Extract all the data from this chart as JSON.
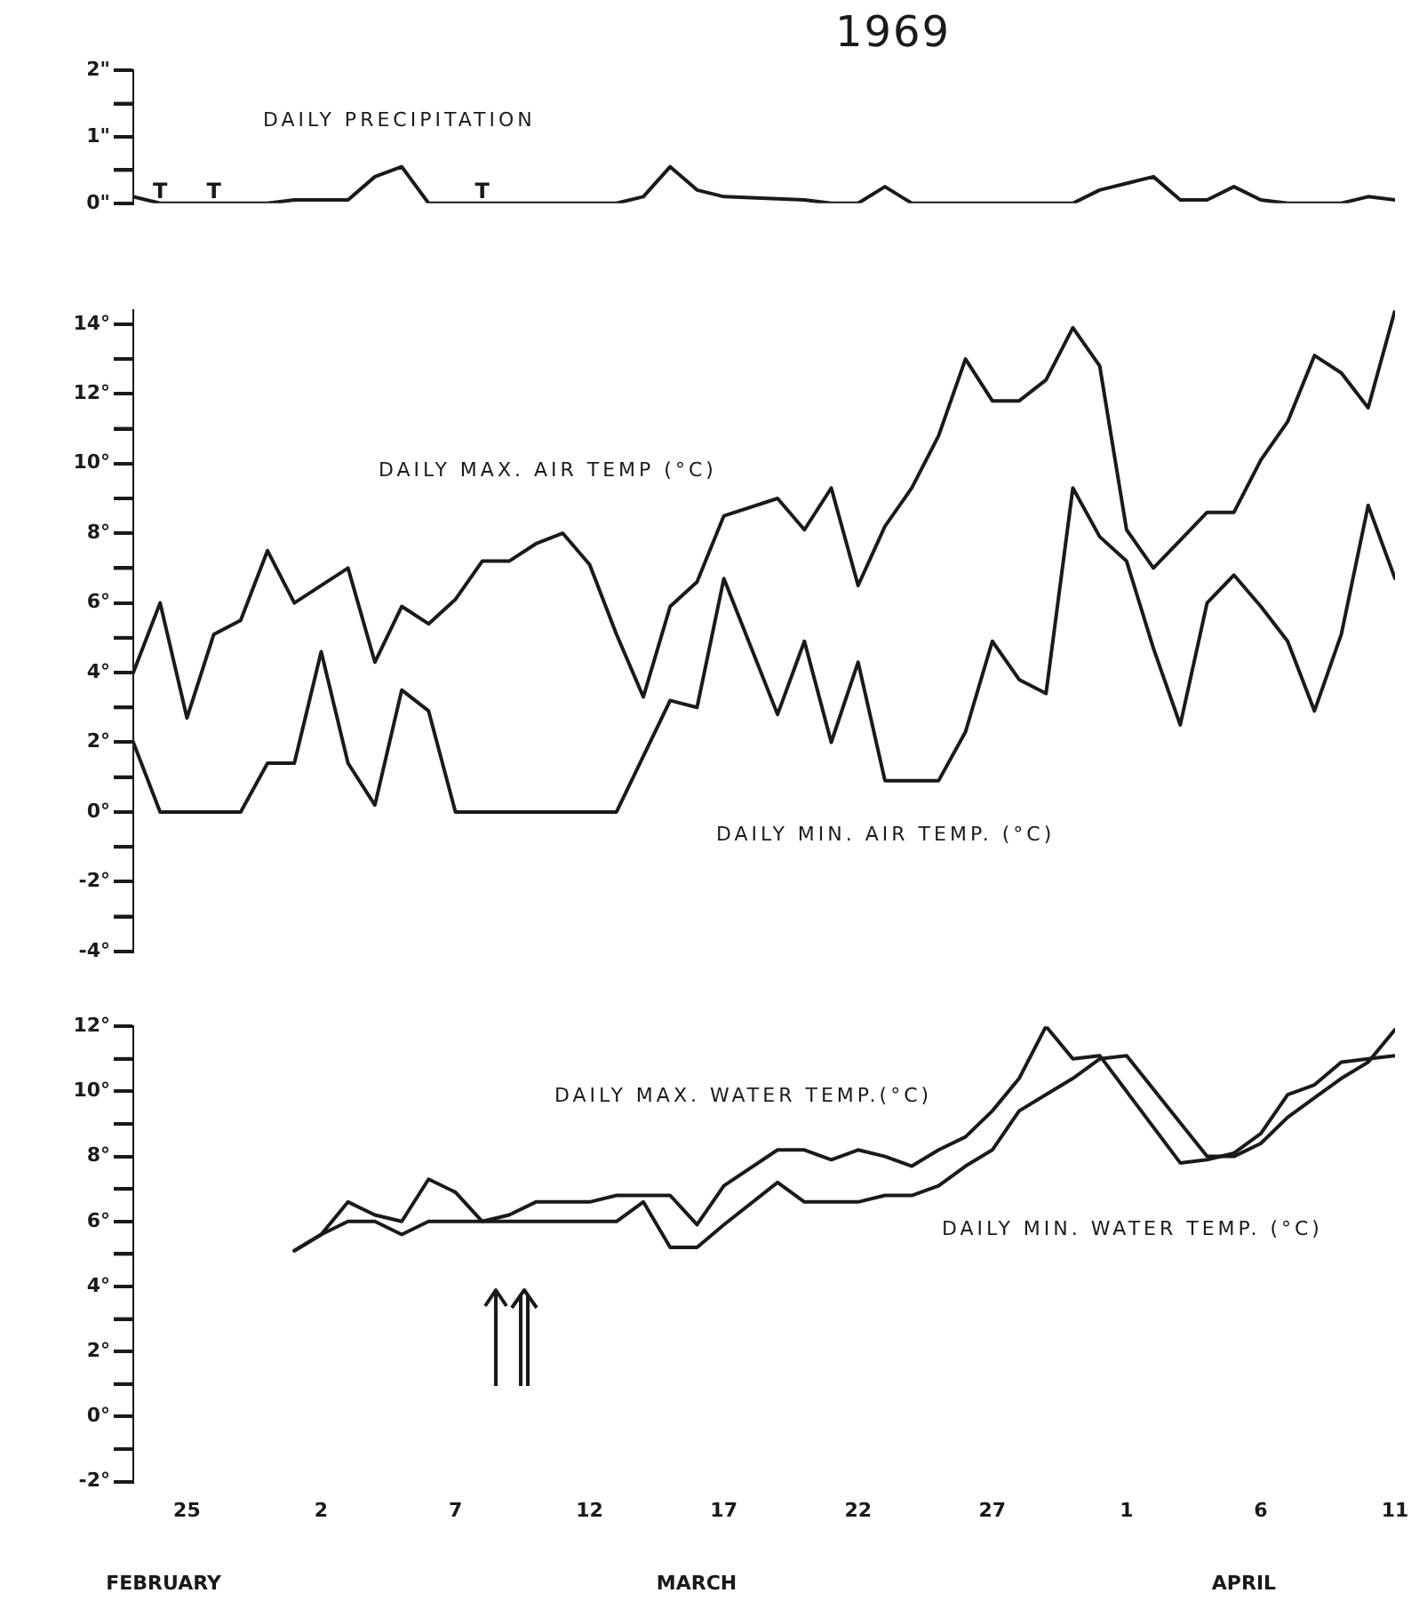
{
  "chart_data": [
    {
      "type": "line",
      "title": "1969",
      "tick_labels": "y",
      "marker": "none",
      "xlim": [
        "1969-02-23",
        "1969-04-11"
      ],
      "ylim": [
        0,
        2
      ],
      "yticks": [
        {
          "value": 0,
          "label": "0\""
        },
        {
          "value": 0.5,
          "label": null
        },
        {
          "value": 1,
          "label": "1\""
        },
        {
          "value": 1.5,
          "label": null
        },
        {
          "value": 2,
          "label": "2\""
        }
      ],
      "series": [
        {
          "name": "DAILY PRECIPITATION",
          "color": "#1a1a1a",
          "x": [
            "1969-02-23",
            "1969-02-24",
            "1969-02-26",
            "1969-02-28",
            "1969-03-01",
            "1969-03-03",
            "1969-03-04",
            "1969-03-05",
            "1969-03-06",
            "1969-03-08",
            "1969-03-10",
            "1969-03-13",
            "1969-03-14",
            "1969-03-15",
            "1969-03-16",
            "1969-03-17",
            "1969-03-20",
            "1969-03-21",
            "1969-03-22",
            "1969-03-23",
            "1969-03-24",
            "1969-03-30",
            "1969-03-31",
            "1969-04-02",
            "1969-04-03",
            "1969-04-04",
            "1969-04-05",
            "1969-04-06",
            "1969-04-07",
            "1969-04-09",
            "1969-04-10",
            "1969-04-11"
          ],
          "values": [
            0.1,
            0,
            0,
            0,
            0.05,
            0.05,
            0.4,
            0.55,
            0,
            0,
            0,
            0,
            0.1,
            0.55,
            0.2,
            0.1,
            0.05,
            0,
            0,
            0.25,
            0,
            0,
            0.2,
            0.4,
            0.05,
            0.05,
            0.25,
            0.05,
            0,
            0,
            0.1,
            0.05
          ]
        }
      ],
      "annotations": [
        {
          "text": "T",
          "x": "1969-02-24",
          "y": 0
        },
        {
          "text": "T",
          "x": "1969-02-26",
          "y": 0
        },
        {
          "text": "T",
          "x": "1969-03-08",
          "y": 0
        }
      ]
    },
    {
      "type": "line",
      "tick_labels": "y",
      "marker": "none",
      "xlim": [
        "1969-02-23",
        "1969-04-11"
      ],
      "ylim": [
        -4,
        14.4
      ],
      "yticks": [
        {
          "value": -4,
          "label": "-4°"
        },
        {
          "value": -3,
          "label": null
        },
        {
          "value": -2,
          "label": "-2°"
        },
        {
          "value": -1,
          "label": null
        },
        {
          "value": 0,
          "label": "0°"
        },
        {
          "value": 1,
          "label": null
        },
        {
          "value": 2,
          "label": "2°"
        },
        {
          "value": 3,
          "label": null
        },
        {
          "value": 4,
          "label": "4°"
        },
        {
          "value": 5,
          "label": null
        },
        {
          "value": 6,
          "label": "6°"
        },
        {
          "value": 7,
          "label": null
        },
        {
          "value": 8,
          "label": "8°"
        },
        {
          "value": 9,
          "label": null
        },
        {
          "value": 10,
          "label": "10°"
        },
        {
          "value": 11,
          "label": null
        },
        {
          "value": 12,
          "label": "12°"
        },
        {
          "value": 13,
          "label": null
        },
        {
          "value": 14,
          "label": "14°"
        }
      ],
      "series": [
        {
          "name": "DAILY MAX. AIR TEMP (°C)",
          "color": "#1a1a1a",
          "x": [
            "1969-02-23",
            "1969-02-24",
            "1969-02-25",
            "1969-02-26",
            "1969-02-27",
            "1969-02-28",
            "1969-03-01",
            "1969-03-03",
            "1969-03-04",
            "1969-03-05",
            "1969-03-06",
            "1969-03-07",
            "1969-03-08",
            "1969-03-09",
            "1969-03-10",
            "1969-03-11",
            "1969-03-12",
            "1969-03-13",
            "1969-03-14",
            "1969-03-15",
            "1969-03-16",
            "1969-03-17",
            "1969-03-19",
            "1969-03-20",
            "1969-03-21",
            "1969-03-22",
            "1969-03-23",
            "1969-03-24",
            "1969-03-25",
            "1969-03-26",
            "1969-03-27",
            "1969-03-28",
            "1969-03-29",
            "1969-03-30",
            "1969-03-31",
            "1969-04-01",
            "1969-04-02",
            "1969-04-03",
            "1969-04-04",
            "1969-04-05",
            "1969-04-06",
            "1969-04-07",
            "1969-04-08",
            "1969-04-09",
            "1969-04-10",
            "1969-04-11"
          ],
          "values": [
            4.0,
            6.0,
            2.7,
            5.1,
            5.5,
            7.5,
            6.0,
            7.0,
            4.3,
            5.9,
            5.4,
            6.1,
            7.2,
            7.2,
            7.7,
            8.0,
            7.1,
            5.1,
            3.3,
            5.9,
            6.6,
            8.5,
            9.0,
            8.1,
            9.3,
            6.5,
            8.2,
            9.3,
            10.8,
            13.0,
            11.8,
            11.8,
            12.4,
            13.9,
            12.8,
            8.1,
            7.0,
            7.8,
            8.6,
            8.6,
            10.1,
            11.2,
            13.1,
            12.6,
            11.6,
            14.4
          ]
        },
        {
          "name": "DAILY MIN. AIR TEMP. (°C)",
          "color": "#1a1a1a",
          "x": [
            "1969-02-23",
            "1969-02-24",
            "1969-02-27",
            "1969-02-28",
            "1969-03-01",
            "1969-03-02",
            "1969-03-03",
            "1969-03-04",
            "1969-03-05",
            "1969-03-06",
            "1969-03-07",
            "1969-03-13",
            "1969-03-15",
            "1969-03-16",
            "1969-03-17",
            "1969-03-19",
            "1969-03-20",
            "1969-03-21",
            "1969-03-22",
            "1969-03-23",
            "1969-03-25",
            "1969-03-26",
            "1969-03-27",
            "1969-03-28",
            "1969-03-29",
            "1969-03-30",
            "1969-03-31",
            "1969-04-01",
            "1969-04-02",
            "1969-04-03",
            "1969-04-04",
            "1969-04-05",
            "1969-04-06",
            "1969-04-07",
            "1969-04-08",
            "1969-04-09",
            "1969-04-10",
            "1969-04-11"
          ],
          "values": [
            2.0,
            0,
            0,
            1.4,
            1.4,
            4.6,
            1.4,
            0.2,
            3.5,
            2.9,
            0,
            0,
            3.2,
            3.0,
            6.7,
            2.8,
            4.9,
            2.0,
            4.3,
            0.9,
            0.9,
            2.3,
            4.9,
            3.8,
            3.4,
            9.3,
            7.9,
            7.2,
            4.7,
            2.5,
            6.0,
            6.8,
            5.9,
            4.9,
            2.9,
            5.1,
            8.8,
            6.7
          ]
        }
      ]
    },
    {
      "type": "line",
      "marker": "none",
      "xlim": [
        "1969-02-23",
        "1969-04-11"
      ],
      "ylim": [
        -2,
        12
      ],
      "xticks": [
        {
          "value": "1969-02-25",
          "label": "25"
        },
        {
          "value": "1969-03-02",
          "label": "2"
        },
        {
          "value": "1969-03-07",
          "label": "7"
        },
        {
          "value": "1969-03-12",
          "label": "12"
        },
        {
          "value": "1969-03-17",
          "label": "17"
        },
        {
          "value": "1969-03-22",
          "label": "22"
        },
        {
          "value": "1969-03-27",
          "label": "27"
        },
        {
          "value": "1969-04-01",
          "label": "1"
        },
        {
          "value": "1969-04-06",
          "label": "6"
        },
        {
          "value": "1969-04-11",
          "label": "11"
        }
      ],
      "yticks": [
        {
          "value": -2,
          "label": "-2°"
        },
        {
          "value": -1,
          "label": null
        },
        {
          "value": 0,
          "label": "0°"
        },
        {
          "value": 1,
          "label": null
        },
        {
          "value": 2,
          "label": "2°"
        },
        {
          "value": 3,
          "label": null
        },
        {
          "value": 4,
          "label": "4°"
        },
        {
          "value": 5,
          "label": null
        },
        {
          "value": 6,
          "label": "6°"
        },
        {
          "value": 7,
          "label": null
        },
        {
          "value": 8,
          "label": "8°"
        },
        {
          "value": 9,
          "label": null
        },
        {
          "value": 10,
          "label": "10°"
        },
        {
          "value": 11,
          "label": null
        },
        {
          "value": 12,
          "label": "12°"
        }
      ],
      "series": [
        {
          "name": "DAILY MAX. WATER TEMP.(°C)",
          "color": "#1a1a1a",
          "x": [
            "1969-03-01",
            "1969-03-02",
            "1969-03-03",
            "1969-03-04",
            "1969-03-05",
            "1969-03-06",
            "1969-03-07",
            "1969-03-08",
            "1969-03-09",
            "1969-03-10",
            "1969-03-12",
            "1969-03-13",
            "1969-03-15",
            "1969-03-16",
            "1969-03-17",
            "1969-03-19",
            "1969-03-20",
            "1969-03-21",
            "1969-03-22",
            "1969-03-23",
            "1969-03-24",
            "1969-03-25",
            "1969-03-26",
            "1969-03-27",
            "1969-03-28",
            "1969-03-29",
            "1969-03-30",
            "1969-03-31",
            "1969-04-03",
            "1969-04-04",
            "1969-04-05",
            "1969-04-06",
            "1969-04-07",
            "1969-04-08",
            "1969-04-09",
            "1969-04-10",
            "1969-04-11"
          ],
          "values": [
            5.1,
            5.6,
            6.6,
            6.2,
            6.0,
            7.3,
            6.9,
            6.0,
            6.2,
            6.6,
            6.6,
            6.8,
            6.8,
            5.9,
            7.1,
            8.2,
            8.2,
            7.9,
            8.2,
            8.0,
            7.7,
            8.2,
            8.6,
            9.4,
            10.4,
            12.0,
            11.0,
            11.1,
            7.8,
            7.9,
            8.1,
            8.7,
            9.9,
            10.2,
            10.9,
            11.0,
            11.1
          ]
        },
        {
          "name": "DAILY MIN. WATER TEMP. (°C)",
          "color": "#1a1a1a",
          "x": [
            "1969-03-01",
            "1969-03-02",
            "1969-03-03",
            "1969-03-04",
            "1969-03-05",
            "1969-03-06",
            "1969-03-13",
            "1969-03-14",
            "1969-03-15",
            "1969-03-16",
            "1969-03-17",
            "1969-03-19",
            "1969-03-20",
            "1969-03-22",
            "1969-03-23",
            "1969-03-24",
            "1969-03-25",
            "1969-03-26",
            "1969-03-27",
            "1969-03-28",
            "1969-03-29",
            "1969-03-30",
            "1969-03-31",
            "1969-04-01",
            "1969-04-04",
            "1969-04-05",
            "1969-04-06",
            "1969-04-07",
            "1969-04-08",
            "1969-04-09",
            "1969-04-10",
            "1969-04-11"
          ],
          "values": [
            5.1,
            5.6,
            6.0,
            6.0,
            5.6,
            6.0,
            6.0,
            6.6,
            5.2,
            5.2,
            5.9,
            7.2,
            6.6,
            6.6,
            6.8,
            6.8,
            7.1,
            7.7,
            8.2,
            9.4,
            9.9,
            10.4,
            11.0,
            11.1,
            8.0,
            8.0,
            8.4,
            9.2,
            9.8,
            10.4,
            10.9,
            11.9
          ]
        }
      ],
      "annotations": [
        "FEBRUARY",
        "MARCH",
        "APRIL"
      ]
    }
  ]
}
